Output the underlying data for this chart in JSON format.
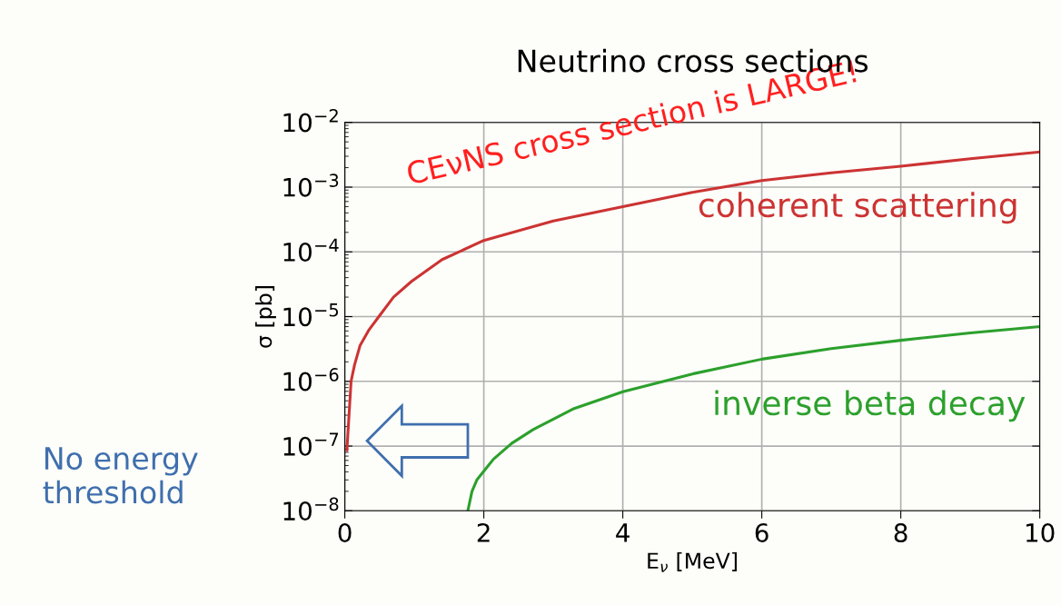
{
  "chart_data": {
    "type": "line",
    "title": "Neutrino cross sections",
    "xlabel": "E$_{ν}$ [MeV]",
    "ylabel": "σ [pb]",
    "log": "y",
    "xlim": [
      0,
      10
    ],
    "xticks": [
      0,
      2,
      4,
      6,
      8,
      10
    ],
    "ylim": [
      1e-08,
      0.01
    ],
    "yticks": [
      {
        "value": 1e-08,
        "label": "10$^{−8}$"
      },
      {
        "value": 1e-07,
        "label": "10$^{−7}$"
      },
      {
        "value": 1e-06,
        "label": "10$^{−6}$"
      },
      {
        "value": 1e-05,
        "label": "10$^{−5}$"
      },
      {
        "value": 0.0001,
        "label": "10$^{−4}$"
      },
      {
        "value": 0.001,
        "label": "10$^{−3}$"
      },
      {
        "value": 0.01,
        "label": "10$^{−2}$"
      }
    ],
    "grid": true,
    "marker": "none",
    "line_style": "solid",
    "series": [
      {
        "name": "coherent scattering",
        "color": "#cc3333",
        "x": [
          0.03,
          0.09,
          0.14,
          0.22,
          0.35,
          0.49,
          0.7,
          0.96,
          1.4,
          2.0,
          3.0,
          4.0,
          5.0,
          6.0,
          7.0,
          8.0,
          9.0,
          10.0
        ],
        "values": [
          8.7e-08,
          1e-06,
          1.8e-06,
          3.6e-06,
          6.3e-06,
          1e-05,
          2e-05,
          3.5e-05,
          7.6e-05,
          0.00015,
          0.0003,
          0.0005,
          0.00083,
          0.00126,
          0.00166,
          0.0021,
          0.00275,
          0.0035
        ]
      },
      {
        "name": "inverse beta decay",
        "color": "#2ca02c",
        "x": [
          1.77,
          1.83,
          1.9,
          2.14,
          2.4,
          2.71,
          3.3,
          4.0,
          5.0,
          6.0,
          7.0,
          8.0,
          9.0,
          10.0
        ],
        "values": [
          1e-08,
          2e-08,
          3e-08,
          6.3e-08,
          1.1e-07,
          1.8e-07,
          3.8e-07,
          6.9e-07,
          1.3e-06,
          2.2e-06,
          3.2e-06,
          4.3e-06,
          5.6e-06,
          7e-06
        ]
      }
    ],
    "annotations": [
      "CEνNS cross section is LARGE!",
      "No energy\nthreshold"
    ]
  }
}
